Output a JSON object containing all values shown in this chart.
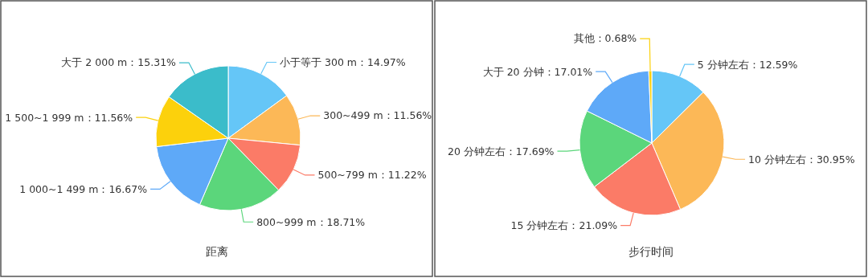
{
  "chart_data": [
    {
      "type": "pie",
      "title": "距离",
      "categories": [
        "小于等于 300 m",
        "300~499 m",
        "500~799 m",
        "800~999 m",
        "1 000~1 499 m",
        "1 500~1 999 m",
        "大于 2 000 m"
      ],
      "values": [
        14.97,
        11.56,
        11.22,
        18.71,
        16.67,
        11.56,
        15.31
      ],
      "value_labels": [
        "14.97%",
        "11.56%",
        "11.22%",
        "18.71%",
        "16.67%",
        "11.56%",
        "15.31%"
      ],
      "colors": [
        "#65c6f7",
        "#fcb857",
        "#fb7b67",
        "#5bd67b",
        "#5ea9f8",
        "#fcd10c",
        "#3bbcca"
      ]
    },
    {
      "type": "pie",
      "title": "步行时间",
      "categories": [
        "5 分钟左右",
        "10 分钟左右",
        "15 分钟左右",
        "20 分钟左右",
        "大于 20 分钟",
        "其他"
      ],
      "values": [
        12.59,
        30.95,
        21.09,
        17.69,
        17.01,
        0.68
      ],
      "value_labels": [
        "12.59%",
        "30.95%",
        "21.09%",
        "17.69%",
        "17.01%",
        "0.68%"
      ],
      "colors": [
        "#65c6f7",
        "#fcb857",
        "#fb7b67",
        "#5bd67b",
        "#5ea9f8",
        "#fcd10c"
      ]
    }
  ]
}
